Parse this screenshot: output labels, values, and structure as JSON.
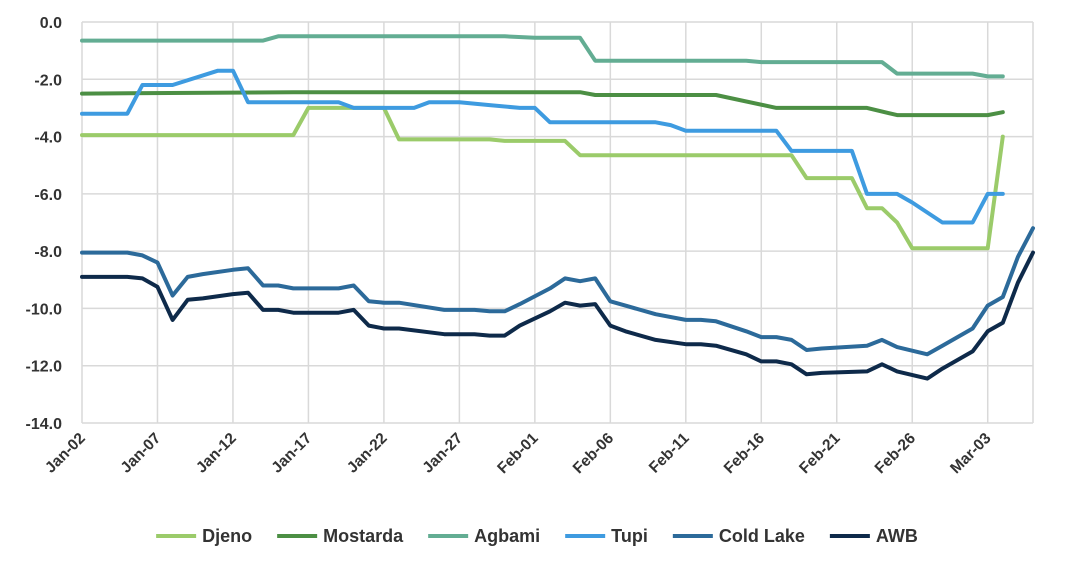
{
  "chart_data": {
    "type": "line",
    "title": "",
    "xlabel": "",
    "ylabel": "",
    "ylim": [
      -14,
      0
    ],
    "grid": true,
    "legend_position": "bottom",
    "x_tick_labels": [
      "Jan-02",
      "Jan-07",
      "Jan-12",
      "Jan-17",
      "Jan-22",
      "Jan-27",
      "Feb-01",
      "Feb-06",
      "Feb-11",
      "Feb-16",
      "Feb-21",
      "Feb-26",
      "Mar-03"
    ],
    "y_ticks": [
      0,
      -2,
      -4,
      -6,
      -8,
      -10,
      -12,
      -14
    ],
    "y_tick_labels": [
      "0.0",
      "-2.0",
      "-4.0",
      "-6.0",
      "-8.0",
      "-10.0",
      "-12.0",
      "-14.0"
    ],
    "series": [
      {
        "name": "Djeno",
        "color": "#9BCB6A",
        "points": [
          [
            0,
            -3.95
          ],
          [
            13,
            -3.95
          ],
          [
            14,
            -3.95
          ],
          [
            15,
            -3.0
          ],
          [
            19,
            -3.0
          ],
          [
            20,
            -3.0
          ],
          [
            21,
            -4.1
          ],
          [
            26,
            -4.1
          ],
          [
            27,
            -4.1
          ],
          [
            28,
            -4.15
          ],
          [
            32,
            -4.15
          ],
          [
            33,
            -4.65
          ],
          [
            38,
            -4.65
          ],
          [
            47,
            -4.65
          ],
          [
            48,
            -5.45
          ],
          [
            51,
            -5.45
          ],
          [
            52,
            -6.5
          ],
          [
            53,
            -6.5
          ],
          [
            54,
            -7.0
          ],
          [
            55,
            -7.9
          ],
          [
            59,
            -7.9
          ],
          [
            60,
            -7.9
          ],
          [
            61,
            -4.0
          ]
        ]
      },
      {
        "name": "Mostarda",
        "color": "#4C8F44",
        "points": [
          [
            0,
            -2.5
          ],
          [
            14,
            -2.45
          ],
          [
            33,
            -2.45
          ],
          [
            34,
            -2.55
          ],
          [
            42,
            -2.55
          ],
          [
            46,
            -3.0
          ],
          [
            52,
            -3.0
          ],
          [
            54,
            -3.25
          ],
          [
            60,
            -3.25
          ],
          [
            61,
            -3.15
          ]
        ]
      },
      {
        "name": "Agbami",
        "color": "#63AD93",
        "points": [
          [
            0,
            -0.65
          ],
          [
            12,
            -0.65
          ],
          [
            13,
            -0.5
          ],
          [
            28,
            -0.5
          ],
          [
            30,
            -0.55
          ],
          [
            33,
            -0.55
          ],
          [
            34,
            -1.35
          ],
          [
            44,
            -1.35
          ],
          [
            45,
            -1.4
          ],
          [
            53,
            -1.4
          ],
          [
            54,
            -1.8
          ],
          [
            59,
            -1.8
          ],
          [
            60,
            -1.9
          ],
          [
            61,
            -1.9
          ]
        ]
      },
      {
        "name": "Tupi",
        "color": "#3E9BE0",
        "points": [
          [
            0,
            -3.2
          ],
          [
            3,
            -3.2
          ],
          [
            4,
            -2.2
          ],
          [
            6,
            -2.2
          ],
          [
            9,
            -1.7
          ],
          [
            10,
            -1.7
          ],
          [
            11,
            -2.8
          ],
          [
            17,
            -2.8
          ],
          [
            18,
            -3.0
          ],
          [
            22,
            -3.0
          ],
          [
            23,
            -2.8
          ],
          [
            25,
            -2.8
          ],
          [
            27,
            -2.9
          ],
          [
            29,
            -3.0
          ],
          [
            30,
            -3.0
          ],
          [
            31,
            -3.5
          ],
          [
            38,
            -3.5
          ],
          [
            39,
            -3.6
          ],
          [
            40,
            -3.8
          ],
          [
            46,
            -3.8
          ],
          [
            47,
            -4.5
          ],
          [
            51,
            -4.5
          ],
          [
            52,
            -6.0
          ],
          [
            54,
            -6.0
          ],
          [
            55,
            -6.3
          ],
          [
            57,
            -7.0
          ],
          [
            59,
            -7.0
          ],
          [
            60,
            -6.0
          ],
          [
            61,
            -6.0
          ]
        ]
      },
      {
        "name": "Cold Lake",
        "color": "#2C6A9A",
        "points": [
          [
            0,
            -8.05
          ],
          [
            3,
            -8.05
          ],
          [
            4,
            -8.15
          ],
          [
            5,
            -8.4
          ],
          [
            6,
            -9.55
          ],
          [
            7,
            -8.9
          ],
          [
            8,
            -8.8
          ],
          [
            10,
            -8.65
          ],
          [
            11,
            -8.6
          ],
          [
            12,
            -9.2
          ],
          [
            13,
            -9.2
          ],
          [
            14,
            -9.3
          ],
          [
            17,
            -9.3
          ],
          [
            18,
            -9.2
          ],
          [
            19,
            -9.75
          ],
          [
            20,
            -9.8
          ],
          [
            21,
            -9.8
          ],
          [
            24,
            -10.05
          ],
          [
            26,
            -10.05
          ],
          [
            27,
            -10.1
          ],
          [
            28,
            -10.1
          ],
          [
            29,
            -9.85
          ],
          [
            31,
            -9.3
          ],
          [
            32,
            -8.95
          ],
          [
            33,
            -9.05
          ],
          [
            34,
            -8.95
          ],
          [
            35,
            -9.75
          ],
          [
            36,
            -9.9
          ],
          [
            38,
            -10.2
          ],
          [
            40,
            -10.4
          ],
          [
            41,
            -10.4
          ],
          [
            42,
            -10.45
          ],
          [
            44,
            -10.8
          ],
          [
            45,
            -11.0
          ],
          [
            46,
            -11.0
          ],
          [
            47,
            -11.1
          ],
          [
            48,
            -11.45
          ],
          [
            49,
            -11.4
          ],
          [
            52,
            -11.3
          ],
          [
            53,
            -11.1
          ],
          [
            54,
            -11.35
          ],
          [
            56,
            -11.6
          ],
          [
            57,
            -11.3
          ],
          [
            59,
            -10.7
          ],
          [
            60,
            -9.9
          ],
          [
            61,
            -9.6
          ],
          [
            62,
            -8.2
          ],
          [
            63,
            -7.2
          ]
        ]
      },
      {
        "name": "AWB",
        "color": "#0E2A4A",
        "points": [
          [
            0,
            -8.9
          ],
          [
            3,
            -8.9
          ],
          [
            4,
            -8.95
          ],
          [
            5,
            -9.25
          ],
          [
            6,
            -10.4
          ],
          [
            7,
            -9.7
          ],
          [
            8,
            -9.65
          ],
          [
            10,
            -9.5
          ],
          [
            11,
            -9.45
          ],
          [
            12,
            -10.05
          ],
          [
            13,
            -10.05
          ],
          [
            14,
            -10.15
          ],
          [
            17,
            -10.15
          ],
          [
            18,
            -10.05
          ],
          [
            19,
            -10.6
          ],
          [
            20,
            -10.7
          ],
          [
            21,
            -10.7
          ],
          [
            24,
            -10.9
          ],
          [
            26,
            -10.9
          ],
          [
            27,
            -10.95
          ],
          [
            28,
            -10.95
          ],
          [
            29,
            -10.6
          ],
          [
            31,
            -10.1
          ],
          [
            32,
            -9.8
          ],
          [
            33,
            -9.9
          ],
          [
            34,
            -9.85
          ],
          [
            35,
            -10.6
          ],
          [
            36,
            -10.8
          ],
          [
            38,
            -11.1
          ],
          [
            40,
            -11.25
          ],
          [
            41,
            -11.25
          ],
          [
            42,
            -11.3
          ],
          [
            44,
            -11.6
          ],
          [
            45,
            -11.85
          ],
          [
            46,
            -11.85
          ],
          [
            47,
            -11.95
          ],
          [
            48,
            -12.3
          ],
          [
            49,
            -12.25
          ],
          [
            52,
            -12.2
          ],
          [
            53,
            -11.95
          ],
          [
            54,
            -12.2
          ],
          [
            56,
            -12.45
          ],
          [
            57,
            -12.1
          ],
          [
            59,
            -11.5
          ],
          [
            60,
            -10.8
          ],
          [
            61,
            -10.5
          ],
          [
            62,
            -9.1
          ],
          [
            63,
            -8.05
          ]
        ]
      }
    ]
  }
}
